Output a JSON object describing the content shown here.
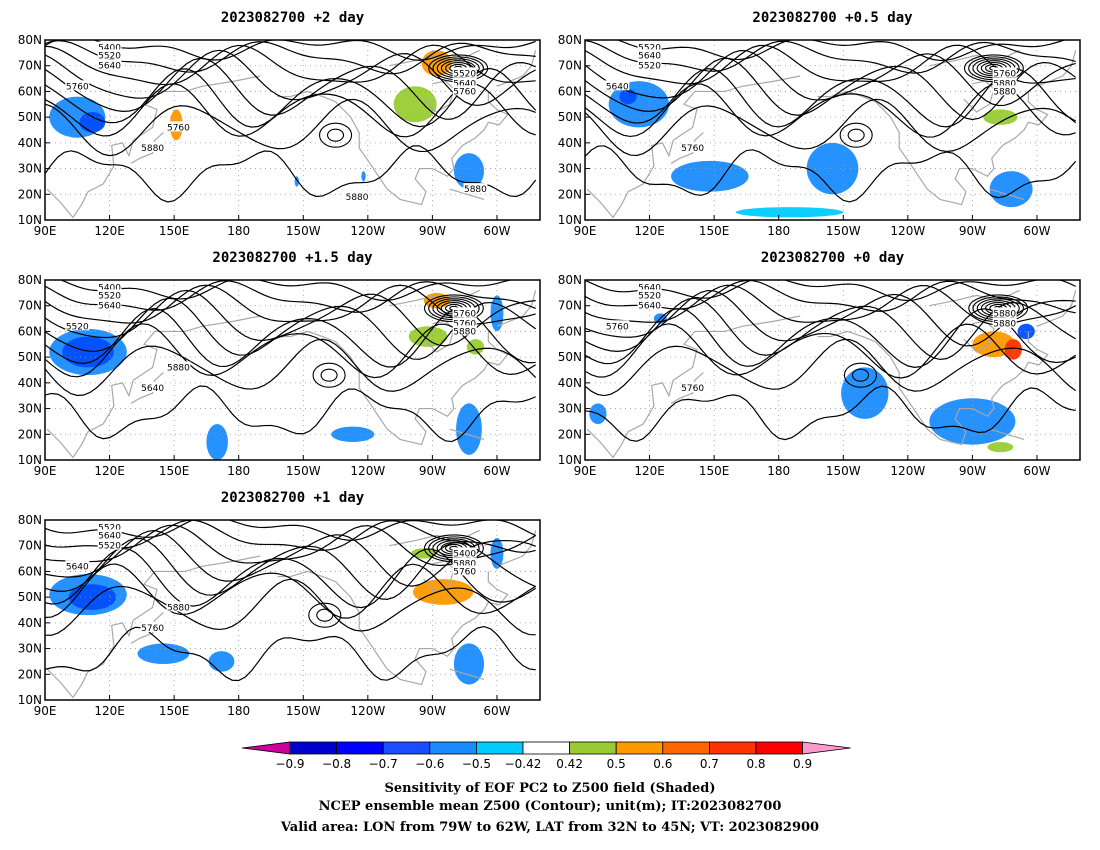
{
  "panels": [
    {
      "title": "2023082700 +2 day",
      "contour_labels": [
        "5400",
        "5520",
        "5640",
        "5760",
        "5880",
        "5520",
        "5640",
        "5760",
        "5760",
        "5880",
        "5880"
      ],
      "blobs": [
        {
          "lon": 105,
          "lat": 50,
          "rx": 13,
          "ry": 8,
          "color": "#1a8cff"
        },
        {
          "lon": 112,
          "lat": 48,
          "rx": 6,
          "ry": 4,
          "color": "#0050ff"
        },
        {
          "lon": 151,
          "lat": 47,
          "rx": 3,
          "ry": 6,
          "color": "#ff9900"
        },
        {
          "lon": 272,
          "lat": 71,
          "rx": 7,
          "ry": 5,
          "color": "#ff9900"
        },
        {
          "lon": 262,
          "lat": 55,
          "rx": 10,
          "ry": 7,
          "color": "#99cc33"
        },
        {
          "lon": 287,
          "lat": 29,
          "rx": 7,
          "ry": 7,
          "color": "#1a8cff"
        },
        {
          "lon": 238,
          "lat": 27,
          "rx": 1,
          "ry": 2,
          "color": "#1a8cff"
        },
        {
          "lon": 207,
          "lat": 25,
          "rx": 1,
          "ry": 2,
          "color": "#1a8cff"
        }
      ]
    },
    {
      "title": "2023082700 +0.5 day",
      "contour_labels": [
        "5520",
        "5640",
        "5520",
        "5640",
        "5760",
        "5760",
        "5880",
        "5880"
      ],
      "blobs": [
        {
          "lon": 115,
          "lat": 55,
          "rx": 14,
          "ry": 9,
          "color": "#1a8cff"
        },
        {
          "lon": 148,
          "lat": 27,
          "rx": 18,
          "ry": 6,
          "color": "#1a8cff"
        },
        {
          "lon": 205,
          "lat": 30,
          "rx": 12,
          "ry": 10,
          "color": "#1a8cff"
        },
        {
          "lon": 283,
          "lat": 50,
          "rx": 8,
          "ry": 3,
          "color": "#99cc33"
        },
        {
          "lon": 288,
          "lat": 22,
          "rx": 10,
          "ry": 7,
          "color": "#1a8cff"
        },
        {
          "lon": 185,
          "lat": 13,
          "rx": 25,
          "ry": 2,
          "color": "#00ccff"
        },
        {
          "lon": 110,
          "lat": 58,
          "rx": 4,
          "ry": 3,
          "color": "#0050ff"
        }
      ]
    },
    {
      "title": "2023082700 +1.5 day",
      "contour_labels": [
        "5400",
        "5520",
        "5640",
        "5520",
        "5640",
        "5760",
        "5760",
        "5880",
        "5880"
      ],
      "blobs": [
        {
          "lon": 110,
          "lat": 52,
          "rx": 18,
          "ry": 9,
          "color": "#1a8cff"
        },
        {
          "lon": 110,
          "lat": 52,
          "rx": 12,
          "ry": 6,
          "color": "#0050ff"
        },
        {
          "lon": 170,
          "lat": 17,
          "rx": 5,
          "ry": 7,
          "color": "#1a8cff"
        },
        {
          "lon": 233,
          "lat": 20,
          "rx": 10,
          "ry": 3,
          "color": "#1a8cff"
        },
        {
          "lon": 287,
          "lat": 22,
          "rx": 6,
          "ry": 10,
          "color": "#1a8cff"
        },
        {
          "lon": 272,
          "lat": 72,
          "rx": 6,
          "ry": 3,
          "color": "#ff9900"
        },
        {
          "lon": 268,
          "lat": 58,
          "rx": 9,
          "ry": 4,
          "color": "#99cc33"
        },
        {
          "lon": 290,
          "lat": 54,
          "rx": 4,
          "ry": 3,
          "color": "#99cc33"
        },
        {
          "lon": 300,
          "lat": 67,
          "rx": 3,
          "ry": 7,
          "color": "#1a8cff"
        }
      ]
    },
    {
      "title": "2023082700 +0 day",
      "contour_labels": [
        "5640",
        "5520",
        "5640",
        "5760",
        "5760",
        "5880",
        "5880"
      ],
      "blobs": [
        {
          "lon": 280,
          "lat": 55,
          "rx": 10,
          "ry": 5,
          "color": "#ff9900"
        },
        {
          "lon": 289,
          "lat": 53,
          "rx": 4,
          "ry": 4,
          "color": "#ff3300"
        },
        {
          "lon": 220,
          "lat": 36,
          "rx": 11,
          "ry": 10,
          "color": "#1a8cff"
        },
        {
          "lon": 270,
          "lat": 25,
          "rx": 20,
          "ry": 9,
          "color": "#1a8cff"
        },
        {
          "lon": 295,
          "lat": 60,
          "rx": 4,
          "ry": 3,
          "color": "#0050ff"
        },
        {
          "lon": 96,
          "lat": 28,
          "rx": 4,
          "ry": 4,
          "color": "#1a8cff"
        },
        {
          "lon": 125,
          "lat": 65,
          "rx": 3,
          "ry": 2,
          "color": "#1a8cff"
        },
        {
          "lon": 283,
          "lat": 15,
          "rx": 6,
          "ry": 2,
          "color": "#99cc33"
        }
      ]
    },
    {
      "title": "2023082700 +1 day",
      "contour_labels": [
        "5520",
        "5640",
        "5520",
        "5640",
        "5760",
        "5400",
        "5880",
        "5760",
        "5880"
      ],
      "blobs": [
        {
          "lon": 110,
          "lat": 51,
          "rx": 18,
          "ry": 8,
          "color": "#1a8cff"
        },
        {
          "lon": 112,
          "lat": 50,
          "rx": 11,
          "ry": 5,
          "color": "#0050ff"
        },
        {
          "lon": 145,
          "lat": 28,
          "rx": 12,
          "ry": 4,
          "color": "#1a8cff"
        },
        {
          "lon": 172,
          "lat": 25,
          "rx": 6,
          "ry": 4,
          "color": "#1a8cff"
        },
        {
          "lon": 275,
          "lat": 52,
          "rx": 14,
          "ry": 5,
          "color": "#ff9900"
        },
        {
          "lon": 266,
          "lat": 67,
          "rx": 6,
          "ry": 2,
          "color": "#99cc33"
        },
        {
          "lon": 287,
          "lat": 24,
          "rx": 7,
          "ry": 8,
          "color": "#1a8cff"
        },
        {
          "lon": 300,
          "lat": 67,
          "rx": 3,
          "ry": 6,
          "color": "#1a8cff"
        }
      ]
    }
  ],
  "x_ticks": [
    {
      "lon": 90,
      "label": "90E"
    },
    {
      "lon": 120,
      "label": "120E"
    },
    {
      "lon": 150,
      "label": "150E"
    },
    {
      "lon": 180,
      "label": "180"
    },
    {
      "lon": 210,
      "label": "150W"
    },
    {
      "lon": 240,
      "label": "120W"
    },
    {
      "lon": 270,
      "label": "90W"
    },
    {
      "lon": 300,
      "label": "60W"
    }
  ],
  "y_ticks": [
    {
      "lat": 10,
      "label": "10N"
    },
    {
      "lat": 20,
      "label": "20N"
    },
    {
      "lat": 30,
      "label": "30N"
    },
    {
      "lat": 40,
      "label": "40N"
    },
    {
      "lat": 50,
      "label": "50N"
    },
    {
      "lat": 60,
      "label": "60N"
    },
    {
      "lat": 70,
      "label": "70N"
    },
    {
      "lat": 80,
      "label": "80N"
    }
  ],
  "lon_range": [
    90,
    320
  ],
  "lat_range": [
    10,
    80
  ],
  "colorbar": {
    "low_color": "#cc0099",
    "high_color": "#ff99cc",
    "boxes": [
      "#0000cc",
      "#0000ff",
      "#1a4dff",
      "#1a8cff",
      "#00ccff",
      "#ffffff",
      "#99cc33",
      "#ff9900",
      "#ff6600",
      "#ff3300",
      "#ff0000"
    ],
    "labels": [
      "−0.9",
      "−0.8",
      "−0.7",
      "−0.6",
      "−0.5",
      "−0.42",
      "0.42",
      "0.5",
      "0.6",
      "0.7",
      "0.8",
      "0.9"
    ]
  },
  "footer": {
    "line1": "Sensitivity of EOF PC2 to Z500 field (Shaded)",
    "line2": "NCEP ensemble mean Z500 (Contour); unit(m); IT:2023082700",
    "line3": "Valid area: LON from 79W to 62W, LAT from 32N to 45N; VT: 2023082900"
  },
  "colors": {
    "contour": "#000000",
    "coastline": "#a8a8a8",
    "grid": "#9a9a9a"
  }
}
